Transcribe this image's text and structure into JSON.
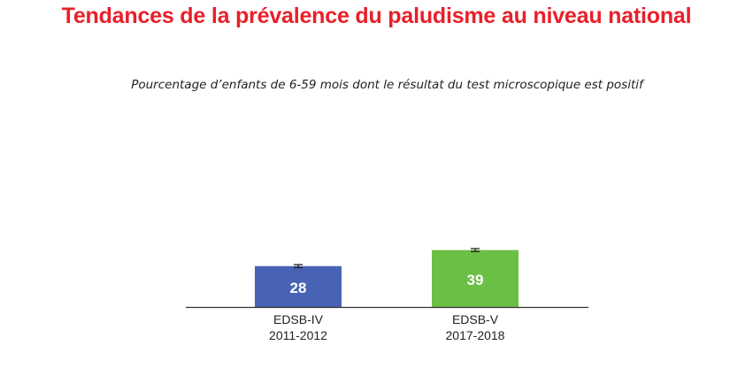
{
  "chart_data": {
    "type": "bar",
    "title": "Tendances de la prévalence du paludisme au niveau national",
    "subtitle": "Pourcentage d’enfants de 6-59 mois dont le résultat du test microscopique est positif",
    "xlabel": "",
    "ylabel": "",
    "ylim": [
      0,
      100
    ],
    "grid": false,
    "legend": "none",
    "categories": [
      {
        "name": "EDSB-IV",
        "period": "2011-2012"
      },
      {
        "name": "EDSB-V",
        "period": "2017-2018"
      }
    ],
    "values": [
      28,
      39
    ],
    "data_labels": [
      "28",
      "39"
    ],
    "error_bars": [
      [
        27,
        29
      ],
      [
        38,
        40
      ]
    ],
    "colors": [
      "#4963b4",
      "#6bbf45"
    ]
  }
}
